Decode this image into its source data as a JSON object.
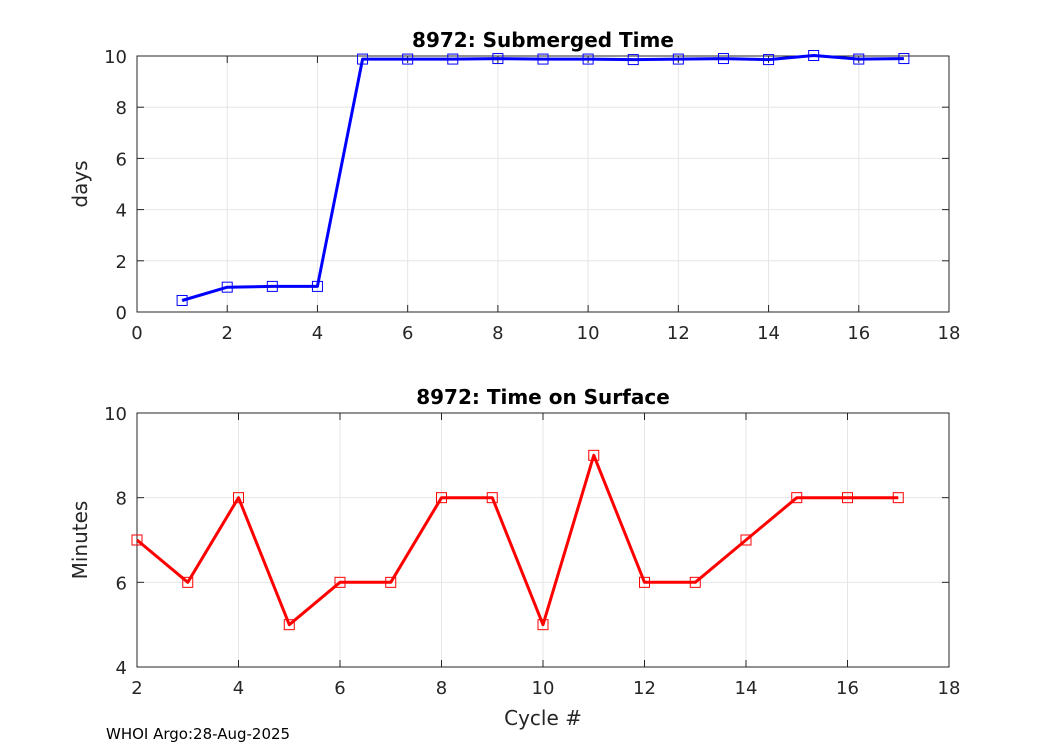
{
  "chart_data": [
    {
      "type": "line",
      "title": "8972: Submerged Time",
      "xlabel": "",
      "ylabel": "days",
      "xlim": [
        0,
        18
      ],
      "ylim": [
        0,
        10
      ],
      "xticks": [
        "0",
        "2",
        "4",
        "6",
        "8",
        "10",
        "12",
        "14",
        "16",
        "18"
      ],
      "yticks": [
        "0",
        "2",
        "4",
        "6",
        "8",
        "10"
      ],
      "grid": true,
      "marker": "square",
      "color": "#0000ff",
      "x": [
        1,
        2,
        3,
        4,
        5,
        6,
        7,
        8,
        9,
        10,
        11,
        12,
        13,
        14,
        15,
        16,
        17
      ],
      "y": [
        0.45,
        0.97,
        1.0,
        1.0,
        9.88,
        9.88,
        9.88,
        9.9,
        9.88,
        9.88,
        9.86,
        9.88,
        9.9,
        9.86,
        10.02,
        9.88,
        9.9
      ]
    },
    {
      "type": "line",
      "title": "8972: Time on Surface",
      "xlabel": "Cycle #",
      "ylabel": "Minutes",
      "xlim": [
        2,
        18
      ],
      "ylim": [
        4,
        10
      ],
      "xticks": [
        "2",
        "4",
        "6",
        "8",
        "10",
        "12",
        "14",
        "16",
        "18"
      ],
      "yticks": [
        "4",
        "6",
        "8",
        "10"
      ],
      "grid": true,
      "marker": "square",
      "color": "#ff0000",
      "x": [
        2,
        3,
        4,
        5,
        6,
        7,
        8,
        9,
        10,
        11,
        12,
        13,
        14,
        15,
        16,
        17
      ],
      "y": [
        7,
        6,
        8,
        5,
        6,
        6,
        8,
        8,
        5,
        9,
        6,
        6,
        7,
        8,
        8,
        8
      ]
    }
  ],
  "footer": "WHOI Argo:28-Aug-2025"
}
